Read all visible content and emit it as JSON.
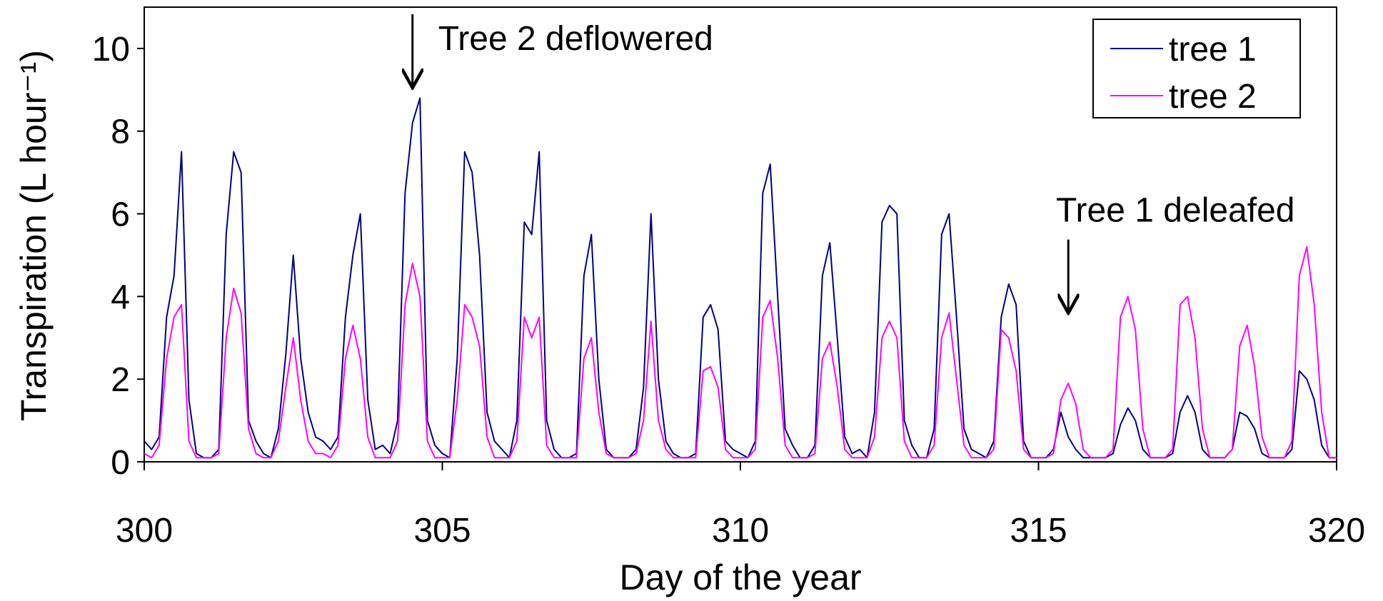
{
  "chart_data": {
    "type": "line",
    "xlabel": "Day of the year",
    "ylabel": "Transpiration (L hour⁻¹)",
    "xlim": [
      300,
      320
    ],
    "xticks": [
      300,
      305,
      310,
      315,
      320
    ],
    "ylim": [
      0,
      11
    ],
    "yticks": [
      0,
      2,
      4,
      6,
      8,
      10
    ],
    "legend": "upper right",
    "annotations": [
      {
        "text": "Tree 2 deflowered",
        "x": 304.5,
        "y": 9.1
      },
      {
        "text": "Tree 1 deleafed",
        "x": 315.5,
        "y": 3.65
      }
    ],
    "x": [
      300,
      300.125,
      300.25,
      300.375,
      300.5,
      300.625,
      300.75,
      300.875,
      301,
      301.125,
      301.25,
      301.375,
      301.5,
      301.625,
      301.75,
      301.875,
      302,
      302.125,
      302.25,
      302.375,
      302.5,
      302.625,
      302.75,
      302.875,
      303,
      303.125,
      303.25,
      303.375,
      303.5,
      303.625,
      303.75,
      303.875,
      304,
      304.125,
      304.25,
      304.375,
      304.5,
      304.625,
      304.75,
      304.875,
      305,
      305.125,
      305.25,
      305.375,
      305.5,
      305.625,
      305.75,
      305.875,
      306,
      306.125,
      306.25,
      306.375,
      306.5,
      306.625,
      306.75,
      306.875,
      307,
      307.125,
      307.25,
      307.375,
      307.5,
      307.625,
      307.75,
      307.875,
      308,
      308.125,
      308.25,
      308.375,
      308.5,
      308.625,
      308.75,
      308.875,
      309,
      309.125,
      309.25,
      309.375,
      309.5,
      309.625,
      309.75,
      309.875,
      310,
      310.125,
      310.25,
      310.375,
      310.5,
      310.625,
      310.75,
      310.875,
      311,
      311.125,
      311.25,
      311.375,
      311.5,
      311.625,
      311.75,
      311.875,
      312,
      312.125,
      312.25,
      312.375,
      312.5,
      312.625,
      312.75,
      312.875,
      313,
      313.125,
      313.25,
      313.375,
      313.5,
      313.625,
      313.75,
      313.875,
      314,
      314.125,
      314.25,
      314.375,
      314.5,
      314.625,
      314.75,
      314.875,
      315,
      315.125,
      315.25,
      315.375,
      315.5,
      315.625,
      315.75,
      315.875,
      316,
      316.125,
      316.25,
      316.375,
      316.5,
      316.625,
      316.75,
      316.875,
      317,
      317.125,
      317.25,
      317.375,
      317.5,
      317.625,
      317.75,
      317.875,
      318,
      318.125,
      318.25,
      318.375,
      318.5,
      318.625,
      318.75,
      318.875,
      319,
      319.125,
      319.25,
      319.375,
      319.5,
      319.625,
      319.75,
      319.875,
      320
    ],
    "series": [
      {
        "name": "tree 1",
        "color": "#000080",
        "values": [
          0.5,
          0.3,
          0.6,
          3.5,
          4.5,
          7.5,
          1.5,
          0.2,
          0.1,
          0.1,
          0.3,
          5.5,
          7.5,
          7.0,
          1.0,
          0.5,
          0.2,
          0.1,
          0.8,
          2.6,
          5.0,
          2.5,
          1.2,
          0.6,
          0.5,
          0.3,
          0.6,
          3.5,
          5.0,
          6.0,
          1.5,
          0.3,
          0.4,
          0.2,
          1.0,
          6.5,
          8.2,
          8.8,
          1.0,
          0.4,
          0.2,
          0.1,
          2.5,
          7.5,
          7.0,
          5.0,
          1.2,
          0.5,
          0.3,
          0.1,
          1.0,
          5.8,
          5.5,
          7.5,
          1.0,
          0.3,
          0.1,
          0.1,
          0.2,
          4.5,
          5.5,
          2.0,
          0.3,
          0.1,
          0.1,
          0.1,
          0.3,
          1.8,
          6.0,
          2.0,
          0.5,
          0.2,
          0.1,
          0.1,
          0.2,
          3.5,
          3.8,
          3.2,
          0.5,
          0.3,
          0.2,
          0.1,
          0.5,
          6.5,
          7.2,
          4.0,
          0.8,
          0.4,
          0.1,
          0.1,
          0.4,
          4.5,
          5.3,
          3.0,
          0.6,
          0.2,
          0.3,
          0.1,
          1.2,
          5.8,
          6.2,
          6.0,
          1.0,
          0.4,
          0.1,
          0.1,
          0.8,
          5.5,
          6.0,
          3.5,
          0.8,
          0.3,
          0.2,
          0.1,
          0.5,
          3.5,
          4.3,
          3.8,
          0.5,
          0.1,
          0.1,
          0.1,
          0.3,
          1.2,
          0.6,
          0.3,
          0.1,
          0.1,
          0.1,
          0.1,
          0.2,
          0.9,
          1.3,
          1.0,
          0.3,
          0.1,
          0.1,
          0.1,
          0.2,
          1.2,
          1.6,
          1.2,
          0.3,
          0.1,
          0.1,
          0.1,
          0.3,
          1.2,
          1.1,
          0.8,
          0.2,
          0.1,
          0.1,
          0.1,
          0.3,
          2.2,
          2.0,
          1.5,
          0.4,
          0.1,
          0.1
        ]
      },
      {
        "name": "tree 2",
        "color": "#ff00ff",
        "values": [
          0.2,
          0.1,
          0.4,
          2.5,
          3.5,
          3.8,
          0.5,
          0.1,
          0.1,
          0.1,
          0.2,
          3.0,
          4.2,
          3.6,
          0.8,
          0.2,
          0.1,
          0.1,
          0.5,
          1.8,
          3.0,
          1.5,
          0.5,
          0.2,
          0.2,
          0.1,
          0.4,
          2.5,
          3.3,
          2.5,
          0.6,
          0.1,
          0.1,
          0.1,
          0.5,
          3.8,
          4.8,
          4.0,
          0.5,
          0.1,
          0.1,
          0.1,
          1.5,
          3.8,
          3.5,
          2.8,
          0.6,
          0.1,
          0.1,
          0.1,
          0.5,
          3.5,
          3.0,
          3.5,
          0.4,
          0.1,
          0.1,
          0.1,
          0.1,
          2.5,
          3.0,
          1.2,
          0.2,
          0.1,
          0.1,
          0.1,
          0.2,
          1.0,
          3.4,
          1.0,
          0.3,
          0.1,
          0.1,
          0.1,
          0.1,
          2.2,
          2.3,
          1.8,
          0.3,
          0.1,
          0.1,
          0.1,
          0.3,
          3.5,
          3.9,
          2.5,
          0.4,
          0.1,
          0.1,
          0.1,
          0.2,
          2.5,
          2.9,
          1.8,
          0.3,
          0.1,
          0.1,
          0.1,
          0.6,
          3.0,
          3.4,
          3.0,
          0.5,
          0.1,
          0.1,
          0.1,
          0.4,
          3.0,
          3.6,
          2.0,
          0.4,
          0.1,
          0.1,
          0.1,
          0.3,
          3.2,
          3.0,
          2.2,
          0.3,
          0.1,
          0.1,
          0.1,
          0.2,
          1.5,
          1.9,
          1.4,
          0.3,
          0.1,
          0.1,
          0.1,
          0.3,
          3.5,
          4.0,
          3.2,
          0.8,
          0.1,
          0.1,
          0.1,
          0.3,
          3.8,
          4.0,
          3.0,
          0.8,
          0.1,
          0.1,
          0.1,
          0.3,
          2.8,
          3.3,
          2.3,
          0.6,
          0.1,
          0.1,
          0.1,
          0.5,
          4.5,
          5.2,
          3.8,
          1.2,
          0.1,
          0.1
        ]
      }
    ]
  }
}
